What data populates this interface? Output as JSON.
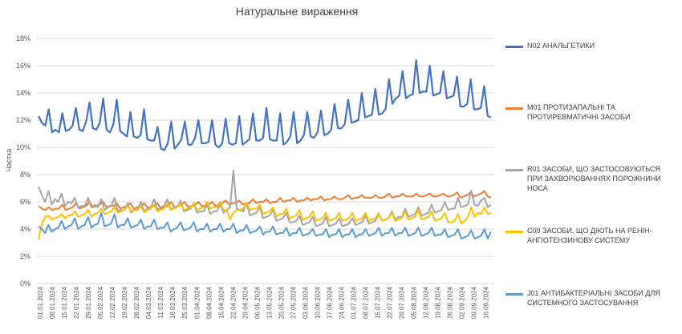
{
  "chart_data": {
    "type": "line",
    "title": "Натуральне вираження",
    "ylabel": "Частка",
    "xlabel": "",
    "ylim": [
      0,
      18
    ],
    "y_ticks": [
      "0%",
      "2%",
      "4%",
      "6%",
      "8%",
      "10%",
      "12%",
      "14%",
      "16%",
      "18%"
    ],
    "x_tick_labels": [
      "01.01.2024",
      "08.01.2024",
      "15.01.2024",
      "22.01.2024",
      "29.01.2024",
      "05.02.2024",
      "12.02.2024",
      "19.02.2024",
      "26.02.2024",
      "04.03.2024",
      "11.03.2024",
      "18.03.2024",
      "25.03.2024",
      "01.04.2024",
      "08.04.2024",
      "15.04.2024",
      "22.04.2024",
      "29.04.2024",
      "06.05.2024",
      "13.05.2024",
      "20.05.2024",
      "27.05.2024",
      "03.06.2024",
      "10.06.2024",
      "17.06.2024",
      "24.06.2024",
      "01.07.2024",
      "08.07.2024",
      "15.07.2024",
      "22.07.2024",
      "29.07.2024",
      "05.08.2024",
      "12.08.2024",
      "19.08.2024",
      "26.08.2024",
      "02.09.2024",
      "09.09.2024",
      "16.09.2024"
    ],
    "grid": true,
    "legend_position": "right",
    "series": [
      {
        "name": "N02 АНАЛЬГЕТИКИ",
        "color": "#4472C4",
        "values": [
          12.3,
          11.8,
          11.6,
          12.8,
          11.1,
          11.3,
          11.1,
          12.5,
          11.2,
          11.3,
          11.6,
          12.9,
          11.3,
          11.2,
          11.9,
          13.3,
          11.4,
          11.3,
          11.8,
          13.6,
          11.3,
          11.1,
          11.7,
          13.5,
          11.2,
          11.0,
          10.8,
          12.6,
          10.8,
          10.7,
          10.9,
          12.8,
          10.6,
          10.5,
          10.5,
          11.5,
          9.9,
          9.8,
          10.3,
          11.9,
          9.9,
          10.2,
          10.6,
          11.9,
          10.2,
          10.2,
          10.7,
          12.0,
          10.3,
          10.3,
          10.4,
          12.0,
          10.2,
          10.0,
          10.3,
          12.1,
          10.3,
          10.2,
          10.3,
          12.3,
          10.2,
          10.4,
          10.6,
          12.5,
          10.5,
          10.5,
          10.7,
          12.9,
          10.6,
          10.5,
          10.5,
          12.5,
          10.2,
          10.4,
          10.8,
          12.6,
          10.3,
          10.5,
          10.9,
          12.6,
          10.8,
          10.7,
          11.1,
          12.7,
          10.9,
          11.0,
          11.3,
          13.2,
          11.4,
          11.4,
          11.7,
          13.5,
          11.8,
          11.9,
          12.0,
          14.0,
          12.2,
          12.3,
          12.4,
          14.3,
          12.4,
          12.5,
          12.8,
          15.0,
          13.2,
          13.6,
          13.8,
          15.6,
          13.6,
          13.8,
          13.9,
          16.4,
          14.0,
          14.1,
          14.1,
          16.0,
          13.8,
          13.9,
          14.0,
          15.6,
          13.6,
          13.7,
          13.8,
          15.2,
          13.0,
          13.0,
          13.2,
          15.0,
          12.8,
          12.8,
          12.9,
          14.5,
          12.3,
          12.2
        ]
      },
      {
        "name": "M01 ПРОТИЗАПАЛЬНІ ТА ПРОТИРЕВМАТИЧНІ ЗАСОБИ",
        "color": "#ED7D31",
        "values": [
          5.7,
          5.5,
          5.4,
          5.6,
          5.4,
          5.5,
          5.5,
          5.8,
          5.4,
          5.5,
          5.6,
          5.9,
          5.5,
          5.6,
          5.7,
          6.0,
          5.6,
          5.7,
          5.8,
          6.0,
          5.6,
          5.7,
          5.7,
          5.9,
          5.5,
          5.6,
          5.7,
          5.9,
          5.5,
          5.6,
          5.6,
          5.9,
          5.6,
          5.6,
          5.7,
          5.9,
          5.5,
          5.6,
          5.7,
          6.0,
          5.6,
          5.7,
          5.8,
          6.0,
          5.6,
          5.7,
          5.8,
          6.0,
          5.7,
          5.7,
          5.8,
          6.0,
          5.7,
          5.8,
          5.9,
          6.1,
          5.8,
          5.9,
          5.9,
          6.1,
          5.8,
          5.9,
          5.9,
          6.2,
          5.9,
          6.0,
          6.0,
          6.2,
          5.9,
          6.0,
          6.0,
          6.3,
          6.0,
          6.1,
          6.1,
          6.3,
          6.0,
          6.1,
          6.1,
          6.3,
          6.1,
          6.2,
          6.2,
          6.4,
          6.1,
          6.2,
          6.2,
          6.4,
          6.2,
          6.2,
          6.3,
          6.5,
          6.2,
          6.3,
          6.3,
          6.5,
          6.3,
          6.3,
          6.3,
          6.5,
          6.3,
          6.3,
          6.4,
          6.6,
          6.3,
          6.4,
          6.4,
          6.6,
          6.4,
          6.4,
          6.4,
          6.6,
          6.4,
          6.4,
          6.5,
          6.6,
          6.4,
          6.4,
          6.5,
          6.6,
          6.4,
          6.4,
          6.5,
          6.7,
          6.3,
          6.4,
          6.5,
          6.7,
          6.4,
          6.5,
          6.6,
          6.8,
          6.4,
          6.3
        ]
      },
      {
        "name": "R01 ЗАСОБИ, ЩО ЗАСТОСОВУЮТЬСЯ ПРИ ЗАХВОРЮВАННЯХ ПОРОЖНИНИ НОСА",
        "color": "#A5A5A5",
        "values": [
          7.1,
          6.5,
          6.0,
          6.8,
          5.8,
          6.2,
          6.0,
          6.6,
          5.7,
          6.0,
          5.9,
          6.3,
          5.6,
          5.7,
          5.7,
          6.3,
          5.6,
          5.8,
          5.6,
          6.2,
          5.4,
          5.6,
          5.7,
          6.3,
          5.3,
          5.4,
          5.4,
          5.9,
          5.2,
          5.4,
          5.5,
          6.0,
          5.3,
          5.5,
          5.6,
          6.2,
          5.4,
          5.6,
          5.7,
          6.2,
          5.4,
          5.6,
          5.6,
          6.1,
          5.3,
          5.4,
          5.5,
          5.9,
          5.2,
          5.3,
          5.3,
          5.8,
          5.1,
          5.3,
          5.3,
          5.8,
          5.2,
          5.4,
          5.6,
          8.3,
          5.5,
          5.4,
          5.3,
          5.9,
          5.0,
          5.1,
          5.2,
          5.6,
          4.8,
          4.9,
          5.0,
          5.4,
          4.6,
          4.7,
          4.8,
          5.2,
          4.5,
          4.5,
          4.6,
          5.0,
          4.3,
          4.4,
          4.5,
          4.9,
          4.2,
          4.3,
          4.4,
          4.9,
          4.2,
          4.3,
          4.4,
          4.8,
          4.2,
          4.3,
          4.4,
          4.8,
          4.3,
          4.4,
          4.5,
          5.0,
          4.4,
          4.5,
          4.6,
          5.1,
          4.6,
          4.7,
          4.8,
          5.3,
          4.7,
          4.9,
          4.9,
          5.5,
          4.9,
          5.0,
          5.1,
          5.6,
          5.0,
          5.1,
          5.2,
          5.8,
          5.2,
          5.3,
          5.4,
          6.0,
          5.4,
          5.5,
          5.5,
          6.3,
          5.6,
          5.7,
          5.8,
          6.8,
          5.8,
          5.7,
          6.1,
          6.3,
          5.6,
          5.8
        ]
      },
      {
        "name": "C09 ЗАСОБИ, ЩО ДІЮТЬ НА РЕНІН-АНГІОТЕНЗИНОВУ СИСТЕМУ",
        "color": "#FFC000",
        "values": [
          3.2,
          4.4,
          4.9,
          5.0,
          4.7,
          4.8,
          4.9,
          5.1,
          4.8,
          5.0,
          5.0,
          5.3,
          4.9,
          5.0,
          5.1,
          5.4,
          4.9,
          5.1,
          5.2,
          5.5,
          5.1,
          5.2,
          5.3,
          5.6,
          5.2,
          5.3,
          5.4,
          5.7,
          5.3,
          5.4,
          5.4,
          5.7,
          5.2,
          5.4,
          5.5,
          5.8,
          5.3,
          5.4,
          5.5,
          5.9,
          5.4,
          5.5,
          5.6,
          5.9,
          5.4,
          5.5,
          5.6,
          5.9,
          5.4,
          5.5,
          5.6,
          6.0,
          5.5,
          5.6,
          5.6,
          6.0,
          5.4,
          5.4,
          4.7,
          5.2,
          5.4,
          5.4,
          5.5,
          5.9,
          5.4,
          5.5,
          5.5,
          5.8,
          5.1,
          5.2,
          5.3,
          5.6,
          4.9,
          5.1,
          5.1,
          5.5,
          4.8,
          4.9,
          5.0,
          5.4,
          4.7,
          4.8,
          4.9,
          5.3,
          4.6,
          4.7,
          4.8,
          5.2,
          4.6,
          4.7,
          4.8,
          5.2,
          4.6,
          4.7,
          4.8,
          5.2,
          4.6,
          4.7,
          4.8,
          5.2,
          4.6,
          4.7,
          4.8,
          5.2,
          4.6,
          4.7,
          4.8,
          5.2,
          4.6,
          4.7,
          4.8,
          5.3,
          4.7,
          4.8,
          4.9,
          5.4,
          4.7,
          4.8,
          4.9,
          5.3,
          4.6,
          4.7,
          4.8,
          5.2,
          4.5,
          4.5,
          4.6,
          5.1,
          4.4,
          4.6,
          4.9,
          5.6,
          4.9,
          5.2,
          5.1,
          5.6,
          5.1,
          5.2
        ]
      },
      {
        "name": "J01 АНТИБАКТЕРІАЛЬНІ ЗАСОБИ ДЛЯ СИСТЕМНОГО ЗАСТОСУВАННЯ",
        "color": "#5B9BD5",
        "values": [
          4.2,
          4.0,
          3.7,
          4.3,
          3.8,
          4.0,
          4.1,
          4.6,
          4.0,
          4.2,
          4.3,
          4.8,
          4.0,
          4.2,
          4.3,
          4.9,
          4.1,
          4.3,
          4.4,
          5.2,
          4.2,
          4.3,
          4.4,
          5.1,
          4.1,
          4.3,
          4.3,
          4.8,
          4.1,
          4.2,
          4.3,
          4.7,
          4.0,
          4.2,
          4.2,
          4.7,
          4.0,
          4.1,
          4.1,
          4.5,
          3.8,
          4.0,
          4.1,
          4.5,
          3.9,
          4.0,
          4.1,
          4.5,
          3.8,
          4.0,
          4.0,
          4.4,
          3.8,
          4.0,
          4.0,
          4.4,
          3.8,
          4.0,
          4.0,
          4.4,
          3.7,
          3.9,
          3.9,
          4.3,
          3.7,
          3.8,
          3.9,
          4.2,
          3.6,
          3.8,
          3.8,
          4.2,
          3.6,
          3.7,
          3.7,
          4.1,
          3.5,
          3.7,
          3.7,
          4.1,
          3.5,
          3.6,
          3.7,
          4.0,
          3.5,
          3.6,
          3.6,
          4.0,
          3.4,
          3.6,
          3.6,
          4.0,
          3.4,
          3.6,
          3.6,
          4.0,
          3.4,
          3.6,
          3.6,
          4.0,
          3.5,
          3.6,
          3.7,
          4.1,
          3.5,
          3.7,
          3.7,
          4.1,
          3.5,
          3.7,
          3.7,
          4.1,
          3.5,
          3.6,
          3.7,
          4.1,
          3.5,
          3.6,
          3.7,
          4.1,
          3.5,
          3.6,
          3.6,
          4.0,
          3.4,
          3.5,
          3.6,
          4.0,
          3.3,
          3.4,
          3.5,
          3.9,
          3.3,
          3.4,
          3.5,
          4.0,
          3.3,
          3.8
        ]
      }
    ]
  }
}
